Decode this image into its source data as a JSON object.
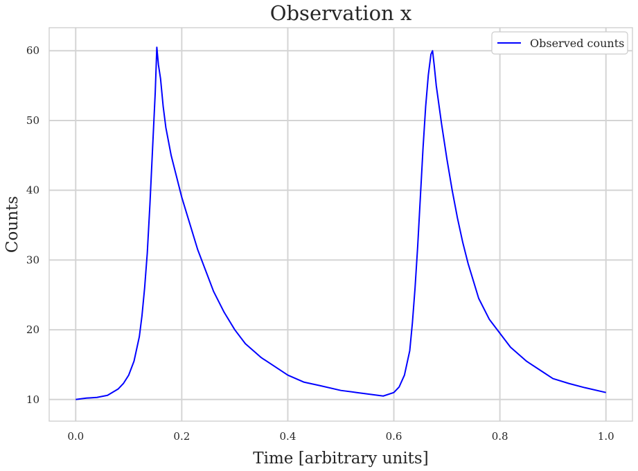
{
  "chart_data": {
    "type": "line",
    "title": "Observation x",
    "xlabel": "Time [arbitrary units]",
    "ylabel": "Counts",
    "xlim": [
      -0.05,
      1.05
    ],
    "ylim": [
      6.9,
      63.3
    ],
    "xticks": [
      0.0,
      0.2,
      0.4,
      0.6,
      0.8,
      1.0
    ],
    "xtick_labels": [
      "0.0",
      "0.2",
      "0.4",
      "0.6",
      "0.8",
      "1.0"
    ],
    "yticks": [
      10,
      20,
      30,
      40,
      50,
      60
    ],
    "ytick_labels": [
      "10",
      "20",
      "30",
      "40",
      "50",
      "60"
    ],
    "grid": true,
    "legend": {
      "position": "top-right"
    },
    "series": [
      {
        "name": "Observed counts",
        "color": "#0000ff",
        "x": [
          0.0,
          0.02,
          0.04,
          0.06,
          0.08,
          0.09,
          0.1,
          0.11,
          0.12,
          0.125,
          0.13,
          0.135,
          0.14,
          0.145,
          0.15,
          0.153,
          0.156,
          0.16,
          0.165,
          0.17,
          0.175,
          0.18,
          0.19,
          0.2,
          0.21,
          0.22,
          0.23,
          0.24,
          0.25,
          0.26,
          0.28,
          0.3,
          0.32,
          0.35,
          0.38,
          0.4,
          0.43,
          0.46,
          0.5,
          0.53,
          0.56,
          0.58,
          0.6,
          0.61,
          0.62,
          0.63,
          0.635,
          0.64,
          0.645,
          0.65,
          0.655,
          0.66,
          0.665,
          0.67,
          0.673,
          0.676,
          0.68,
          0.69,
          0.7,
          0.71,
          0.72,
          0.73,
          0.74,
          0.75,
          0.76,
          0.78,
          0.8,
          0.82,
          0.85,
          0.88,
          0.9,
          0.93,
          0.96,
          1.0
        ],
        "y": [
          10.0,
          10.2,
          10.3,
          10.6,
          11.5,
          12.3,
          13.5,
          15.5,
          19.0,
          22.0,
          26.0,
          31.0,
          38.0,
          46.0,
          54.0,
          60.5,
          58.0,
          56.0,
          52.0,
          49.0,
          47.0,
          45.0,
          42.0,
          39.0,
          36.5,
          34.0,
          31.5,
          29.5,
          27.5,
          25.5,
          22.5,
          20.0,
          18.0,
          16.0,
          14.5,
          13.5,
          12.5,
          12.0,
          11.3,
          11.0,
          10.7,
          10.5,
          11.0,
          11.8,
          13.5,
          17.0,
          21.0,
          26.0,
          32.0,
          39.0,
          46.0,
          52.0,
          56.5,
          59.5,
          60.0,
          58.0,
          55.0,
          49.5,
          44.5,
          40.0,
          36.0,
          32.5,
          29.5,
          27.0,
          24.5,
          21.5,
          19.5,
          17.5,
          15.5,
          14.0,
          13.0,
          12.3,
          11.7,
          11.0
        ]
      }
    ]
  }
}
